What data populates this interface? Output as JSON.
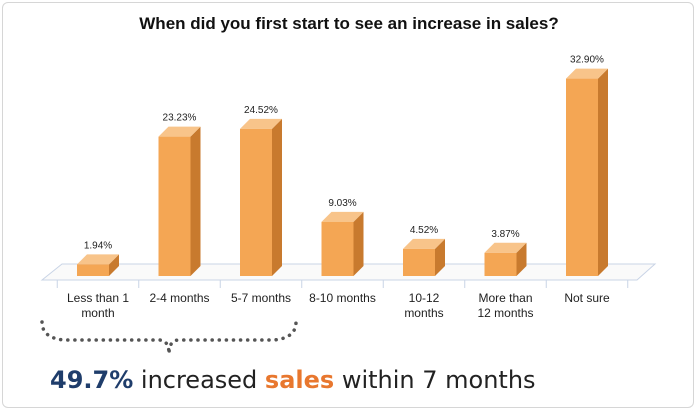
{
  "chart_data": {
    "type": "bar",
    "title": "When did you first start to see an increase in sales?",
    "categories": [
      [
        "Less than 1",
        "month"
      ],
      [
        "2-4 months"
      ],
      [
        "5-7 months"
      ],
      [
        "8-10 months"
      ],
      [
        "10-12",
        "months"
      ],
      [
        "More than",
        "12 months"
      ],
      [
        "Not sure"
      ]
    ],
    "values": [
      1.94,
      23.23,
      24.52,
      9.03,
      4.52,
      3.87,
      32.9
    ],
    "data_labels": [
      "1.94%",
      "23.23%",
      "24.52%",
      "9.03%",
      "4.52%",
      "3.87%",
      "32.90%"
    ],
    "ylim": [
      0,
      35
    ],
    "grid": false,
    "legend": "none",
    "bar_color": "#f4a654",
    "bar_side_color": "#c87a2e",
    "bar_top_color": "#f8c48a"
  },
  "callout": {
    "percent": "49.7%",
    "pre": " increased ",
    "highlight": "sales",
    "post": " within 7 months",
    "percent_color": "#1f3d6b",
    "highlight_color": "#e8772e"
  }
}
